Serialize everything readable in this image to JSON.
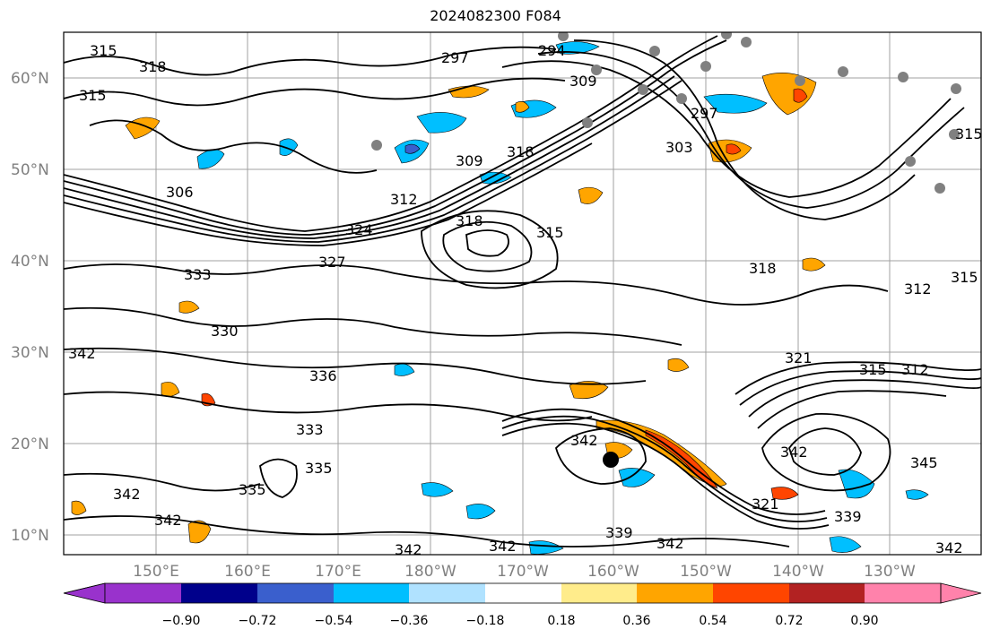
{
  "title": "2024082300 F084",
  "lat_labels": [
    "60°N",
    "50°N",
    "40°N",
    "30°N",
    "20°N",
    "10°N"
  ],
  "lon_labels": [
    "150°E",
    "160°E",
    "170°E",
    "180°W",
    "170°W",
    "160°W",
    "150°W",
    "140°W",
    "130°W"
  ],
  "colorbar": {
    "ticks": [
      "−0.90",
      "−0.72",
      "−0.54",
      "−0.36",
      "−0.18",
      "0.18",
      "0.36",
      "0.54",
      "0.72",
      "0.90"
    ],
    "colors": [
      "#9932cc",
      "#00008b",
      "#3a5fcd",
      "#00bfff",
      "#b0e2ff",
      "#ffffff",
      "#ffec8b",
      "#ffa500",
      "#ff4500",
      "#b22222",
      "#ff82ab"
    ]
  },
  "contour_labels": [
    "315",
    "318",
    "315",
    "297",
    "294",
    "309",
    "297",
    "303",
    "315",
    "306",
    "309",
    "318",
    "312",
    "324",
    "318",
    "315",
    "327",
    "333",
    "318",
    "312",
    "315",
    "330",
    "342",
    "336",
    "321",
    "315",
    "312",
    "333",
    "342",
    "335",
    "342",
    "335",
    "342",
    "345",
    "339",
    "321",
    "339",
    "342",
    "342",
    "342",
    "342",
    "342"
  ],
  "colors": {
    "contour": "#000000",
    "grid": "#a0a0a0",
    "marker": "#808080",
    "center_marker": "#000000"
  }
}
